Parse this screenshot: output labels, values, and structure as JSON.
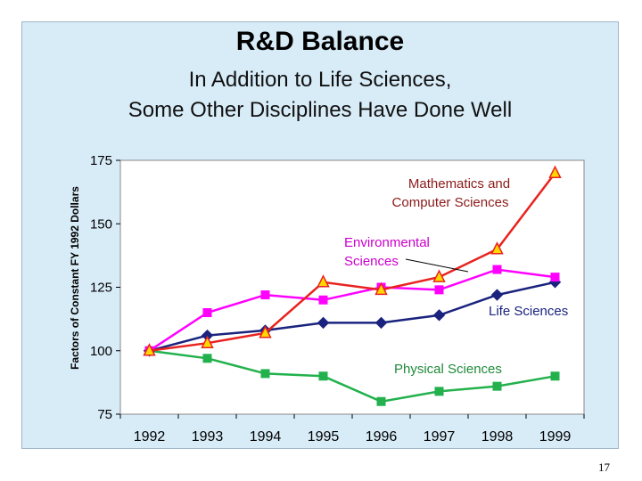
{
  "page": {
    "title": "R&D Balance",
    "subtitle_line1": "In Addition to Life Sciences,",
    "subtitle_line2": "Some Other Disciplines Have Done Well",
    "page_number": "17"
  },
  "colors": {
    "panel_bg": "#d8ecf8",
    "plot_bg": "#ffffff",
    "math_cs": "#e8231f",
    "environmental": "#ff00ff",
    "life": "#1a237e",
    "physical": "#22b14c",
    "triangle_fill": "#ffd800"
  },
  "chart_data": {
    "type": "line",
    "ylabel": "Factors of Constant FY 1992 Dollars",
    "xlabel": "",
    "ylim": [
      75,
      175
    ],
    "yticks": [
      75,
      100,
      125,
      150,
      175
    ],
    "grid": false,
    "categories": [
      "1992",
      "1993",
      "1994",
      "1995",
      "1996",
      "1997",
      "1998",
      "1999"
    ],
    "series": [
      {
        "name": "Mathematics and Computer Sciences",
        "label_line1": "Mathematics and",
        "label_line2": "Computer Sciences",
        "marker": "triangle",
        "values": [
          100,
          103,
          107,
          127,
          124,
          129,
          140,
          170
        ]
      },
      {
        "name": "Environmental Sciences",
        "label_line1": "Environmental",
        "label_line2": "Sciences",
        "marker": "square",
        "values": [
          100,
          115,
          122,
          120,
          125,
          124,
          132,
          129
        ]
      },
      {
        "name": "Life Sciences",
        "label_line1": "Life Sciences",
        "marker": "diamond",
        "values": [
          100,
          106,
          108,
          111,
          111,
          114,
          122,
          127
        ]
      },
      {
        "name": "Physical Sciences",
        "label_line1": "Physical Sciences",
        "marker": "square",
        "values": [
          100,
          97,
          91,
          90,
          80,
          84,
          86,
          90
        ]
      }
    ]
  }
}
